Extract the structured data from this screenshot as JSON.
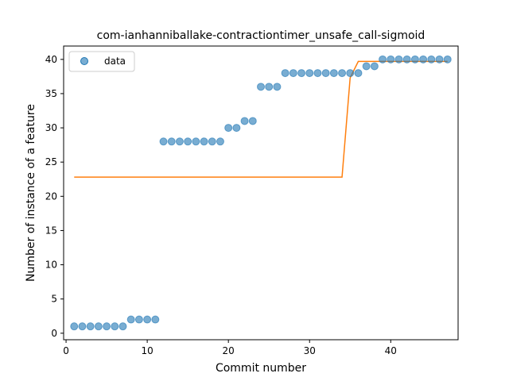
{
  "chart_data": {
    "type": "scatter",
    "title": "com-ianhanniballake-contractiontimer_unsafe_call-sigmoid",
    "xlabel": "Commit number",
    "ylabel": "Number of instance of a feature",
    "xlim": [
      -0.3,
      48.3
    ],
    "ylim": [
      -0.95,
      41.95
    ],
    "xticks": [
      0,
      10,
      20,
      30,
      40
    ],
    "yticks": [
      0,
      5,
      10,
      15,
      20,
      25,
      30,
      35,
      40
    ],
    "grid": false,
    "legend": {
      "position": "top-left",
      "entries": [
        "data"
      ]
    },
    "series": [
      {
        "name": "data",
        "kind": "scatter",
        "color": "#1f77b4",
        "x": [
          1,
          2,
          3,
          4,
          5,
          6,
          7,
          8,
          9,
          10,
          11,
          12,
          13,
          14,
          15,
          16,
          17,
          18,
          19,
          20,
          21,
          22,
          23,
          24,
          25,
          26,
          27,
          28,
          29,
          30,
          31,
          32,
          33,
          34,
          35,
          36,
          37,
          38,
          39,
          40,
          41,
          42,
          43,
          44,
          45,
          46,
          47
        ],
        "y": [
          1,
          1,
          1,
          1,
          1,
          1,
          1,
          2,
          2,
          2,
          2,
          28,
          28,
          28,
          28,
          28,
          28,
          28,
          28,
          30,
          30,
          31,
          31,
          36,
          36,
          36,
          38,
          38,
          38,
          38,
          38,
          38,
          38,
          38,
          38,
          38,
          39,
          39,
          40,
          40,
          40,
          40,
          40,
          40,
          40,
          40,
          40
        ]
      },
      {
        "kind": "line",
        "color": "#ff7f0e",
        "x": [
          1,
          2,
          3,
          4,
          5,
          6,
          7,
          8,
          9,
          10,
          11,
          12,
          13,
          14,
          15,
          16,
          17,
          18,
          19,
          20,
          21,
          22,
          23,
          24,
          25,
          26,
          27,
          28,
          29,
          30,
          31,
          32,
          33,
          34,
          35,
          36,
          37,
          38,
          39,
          40,
          41,
          42,
          43,
          44,
          45,
          46,
          47
        ],
        "y": [
          22.8,
          22.8,
          22.8,
          22.8,
          22.8,
          22.8,
          22.8,
          22.8,
          22.8,
          22.8,
          22.8,
          22.8,
          22.8,
          22.8,
          22.8,
          22.8,
          22.8,
          22.8,
          22.8,
          22.8,
          22.8,
          22.8,
          22.8,
          22.8,
          22.8,
          22.8,
          22.8,
          22.8,
          22.8,
          22.8,
          22.8,
          22.8,
          22.8,
          22.8,
          37.3,
          39.7,
          39.7,
          39.7,
          39.7,
          39.7,
          39.7,
          39.7,
          39.7,
          39.7,
          39.7,
          39.7,
          39.7
        ]
      }
    ]
  }
}
